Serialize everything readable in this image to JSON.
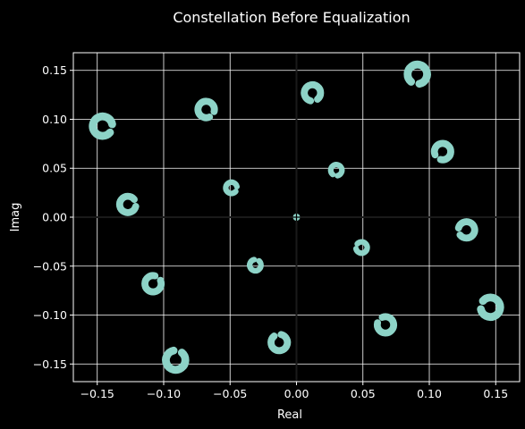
{
  "chart_data": {
    "type": "scatter",
    "title": "Constellation Before Equalization",
    "xlabel": "Real",
    "ylabel": "Imag",
    "xlim": [
      -0.168,
      0.168
    ],
    "ylim": [
      -0.168,
      0.168
    ],
    "xticks": [
      -0.15,
      -0.1,
      -0.05,
      0.0,
      0.05,
      0.1,
      0.15
    ],
    "xtick_labels": [
      "−0.15",
      "−0.10",
      "−0.05",
      "0.00",
      "0.05",
      "0.10",
      "0.15"
    ],
    "yticks": [
      -0.15,
      -0.1,
      -0.05,
      0.0,
      0.05,
      0.1,
      0.15
    ],
    "ytick_labels": [
      "−0.15",
      "−0.10",
      "−0.05",
      "0.00",
      "0.05",
      "0.10",
      "0.15"
    ],
    "grid": true,
    "background": "#000000",
    "grid_color": "#ffffff",
    "marker_color": "#8dd3c7",
    "clusters": [
      {
        "x": -0.146,
        "y": 0.093
      },
      {
        "x": -0.127,
        "y": 0.013
      },
      {
        "x": -0.108,
        "y": -0.068
      },
      {
        "x": -0.091,
        "y": -0.146
      },
      {
        "x": -0.068,
        "y": 0.11
      },
      {
        "x": -0.049,
        "y": 0.03
      },
      {
        "x": -0.031,
        "y": -0.049
      },
      {
        "x": -0.013,
        "y": -0.128
      },
      {
        "x": 0.0,
        "y": 0.0
      },
      {
        "x": 0.012,
        "y": 0.127
      },
      {
        "x": 0.03,
        "y": 0.048
      },
      {
        "x": 0.049,
        "y": -0.031
      },
      {
        "x": 0.067,
        "y": -0.11
      },
      {
        "x": 0.091,
        "y": 0.146
      },
      {
        "x": 0.11,
        "y": 0.067
      },
      {
        "x": 0.128,
        "y": -0.013
      },
      {
        "x": 0.146,
        "y": -0.092
      }
    ]
  }
}
